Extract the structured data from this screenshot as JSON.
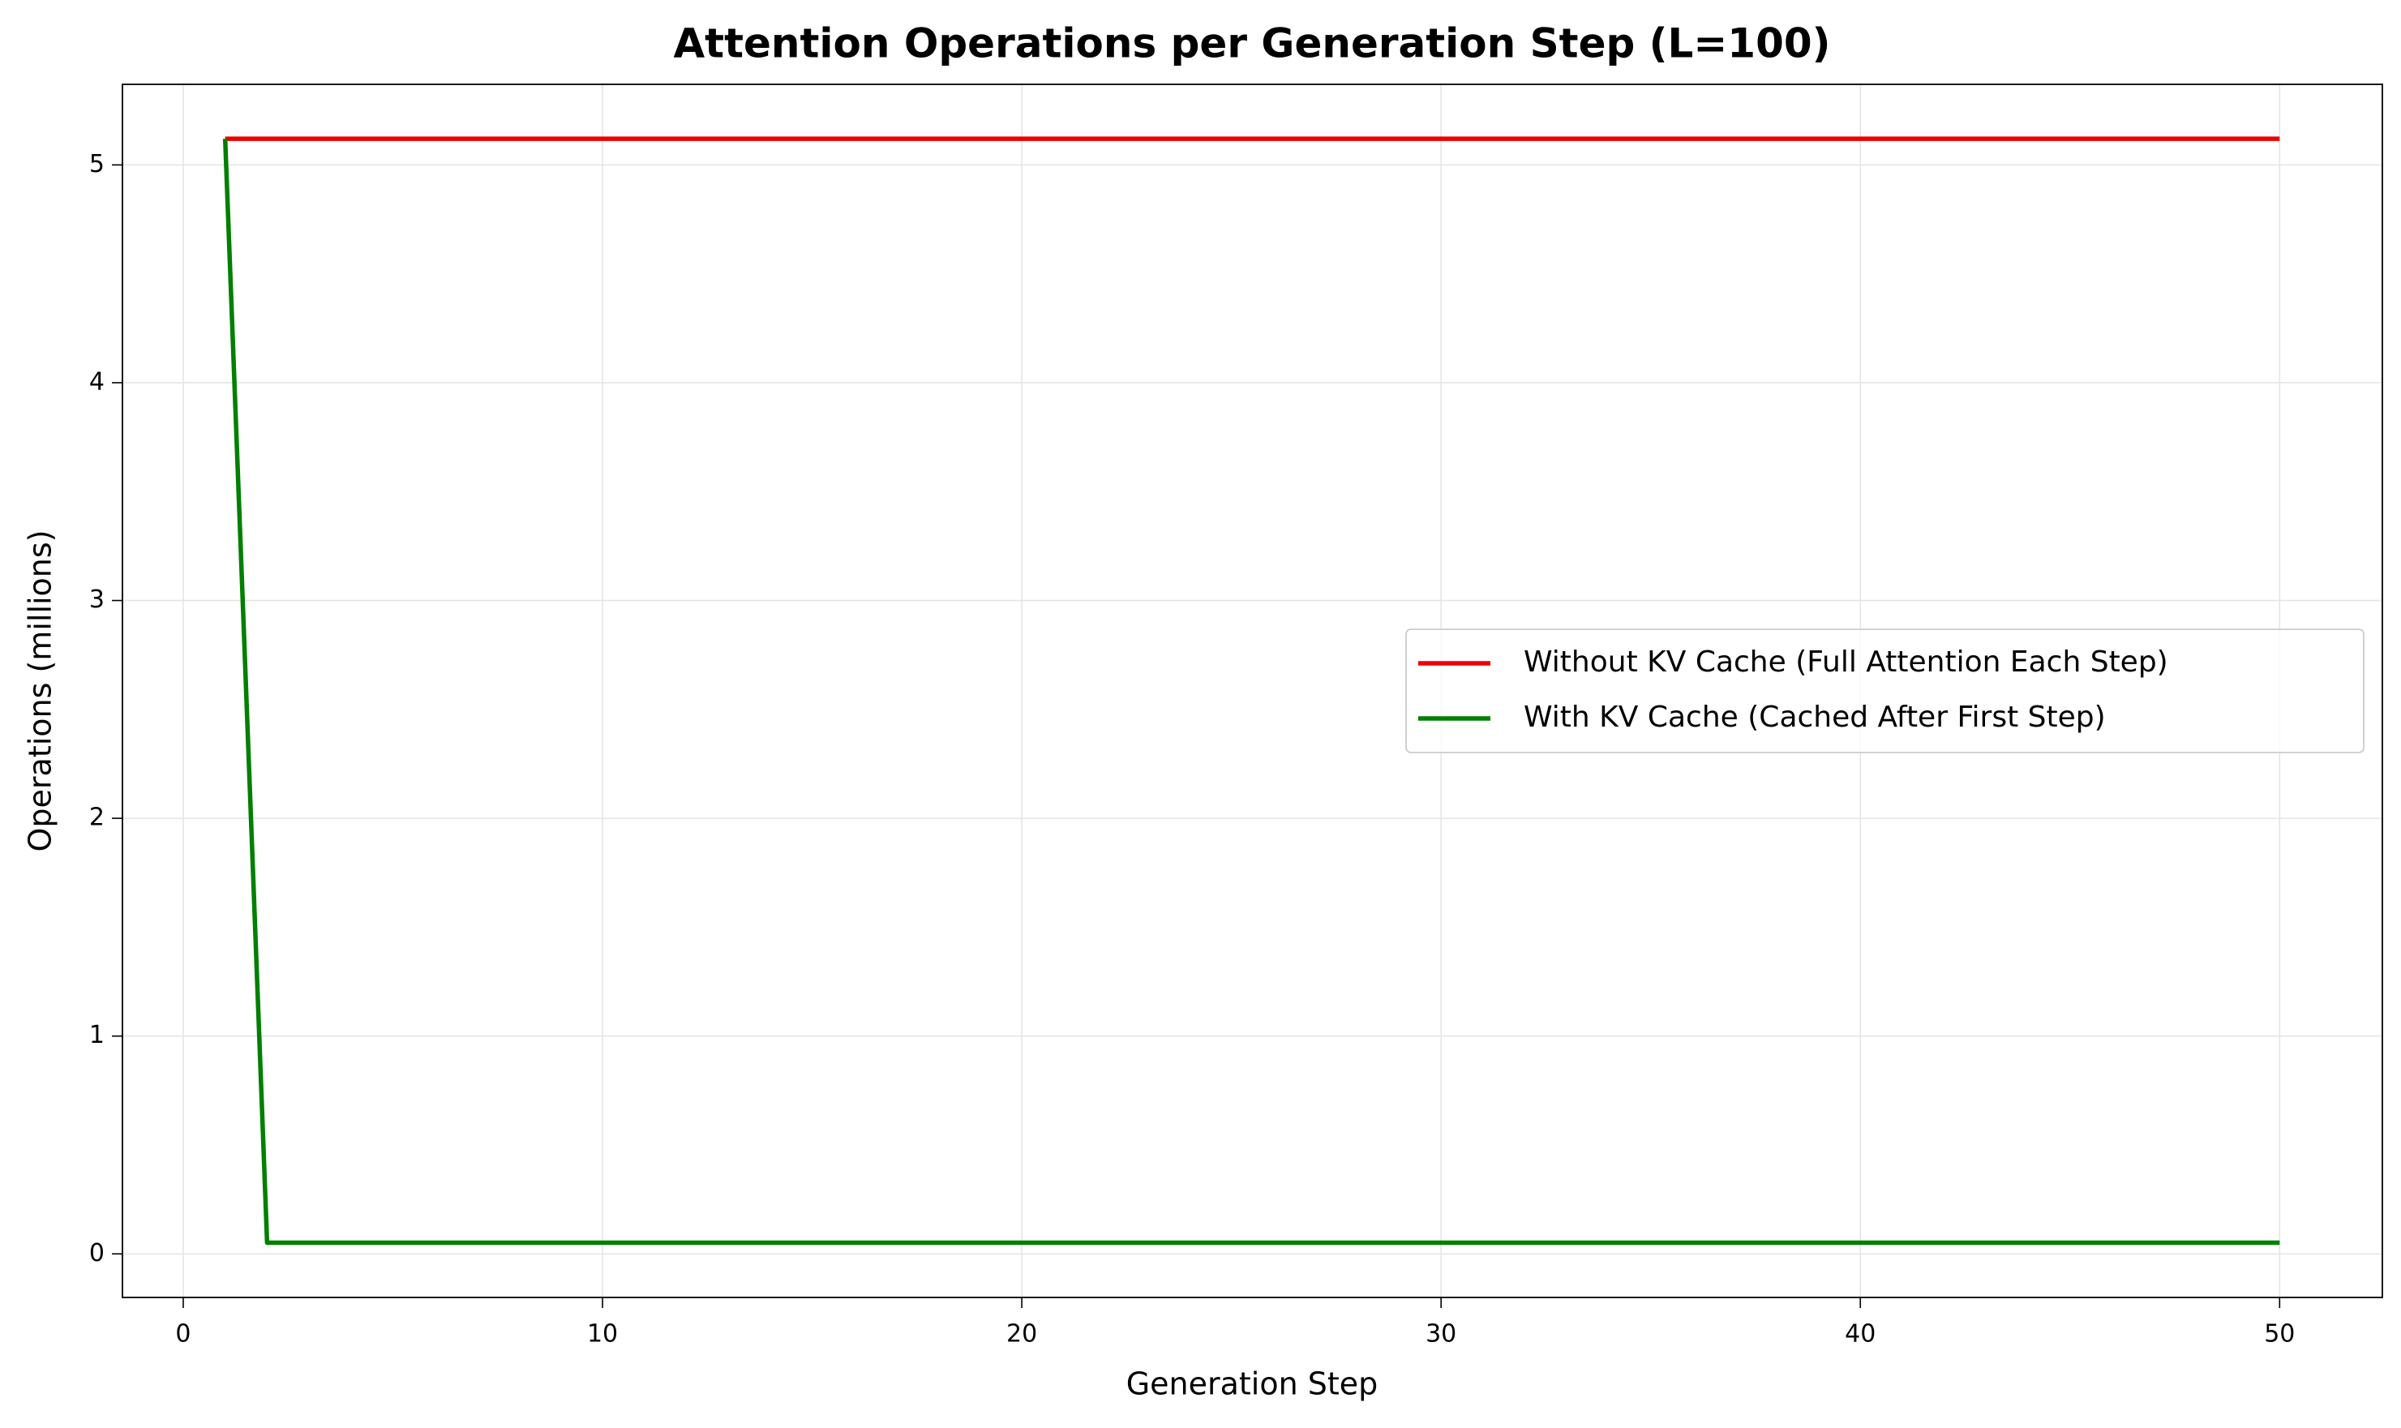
{
  "chart_data": {
    "type": "line",
    "title": "Attention Operations per Generation Step (L=100)",
    "x_label": "Generation Step",
    "y_label": "Operations (millions)",
    "x": [
      1,
      2,
      3,
      4,
      5,
      6,
      7,
      8,
      9,
      10,
      11,
      12,
      13,
      14,
      15,
      16,
      17,
      18,
      19,
      20,
      21,
      22,
      23,
      24,
      25,
      26,
      27,
      28,
      29,
      30,
      31,
      32,
      33,
      34,
      35,
      36,
      37,
      38,
      39,
      40,
      41,
      42,
      43,
      44,
      45,
      46,
      47,
      48,
      49,
      50
    ],
    "series": [
      {
        "name": "Without KV Cache (Full Attention Each Step)",
        "color": "#ee0000",
        "values": [
          5.12,
          5.12,
          5.12,
          5.12,
          5.12,
          5.12,
          5.12,
          5.12,
          5.12,
          5.12,
          5.12,
          5.12,
          5.12,
          5.12,
          5.12,
          5.12,
          5.12,
          5.12,
          5.12,
          5.12,
          5.12,
          5.12,
          5.12,
          5.12,
          5.12,
          5.12,
          5.12,
          5.12,
          5.12,
          5.12,
          5.12,
          5.12,
          5.12,
          5.12,
          5.12,
          5.12,
          5.12,
          5.12,
          5.12,
          5.12,
          5.12,
          5.12,
          5.12,
          5.12,
          5.12,
          5.12,
          5.12,
          5.12,
          5.12,
          5.12
        ]
      },
      {
        "name": "With KV Cache (Cached After First Step)",
        "color": "#007f00",
        "values": [
          5.12,
          0.0512,
          0.0512,
          0.0512,
          0.0512,
          0.0512,
          0.0512,
          0.0512,
          0.0512,
          0.0512,
          0.0512,
          0.0512,
          0.0512,
          0.0512,
          0.0512,
          0.0512,
          0.0512,
          0.0512,
          0.0512,
          0.0512,
          0.0512,
          0.0512,
          0.0512,
          0.0512,
          0.0512,
          0.0512,
          0.0512,
          0.0512,
          0.0512,
          0.0512,
          0.0512,
          0.0512,
          0.0512,
          0.0512,
          0.0512,
          0.0512,
          0.0512,
          0.0512,
          0.0512,
          0.0512,
          0.0512,
          0.0512,
          0.0512,
          0.0512,
          0.0512,
          0.0512,
          0.0512,
          0.0512,
          0.0512,
          0.0512
        ]
      }
    ],
    "xlim": [
      -1.45,
      52.45
    ],
    "xticks": [
      0,
      10,
      20,
      30,
      40,
      50
    ],
    "ylim": [
      -0.2,
      5.37
    ],
    "yticks": [
      0,
      1,
      2,
      3,
      4,
      5
    ],
    "grid": true,
    "legend": "center right"
  }
}
